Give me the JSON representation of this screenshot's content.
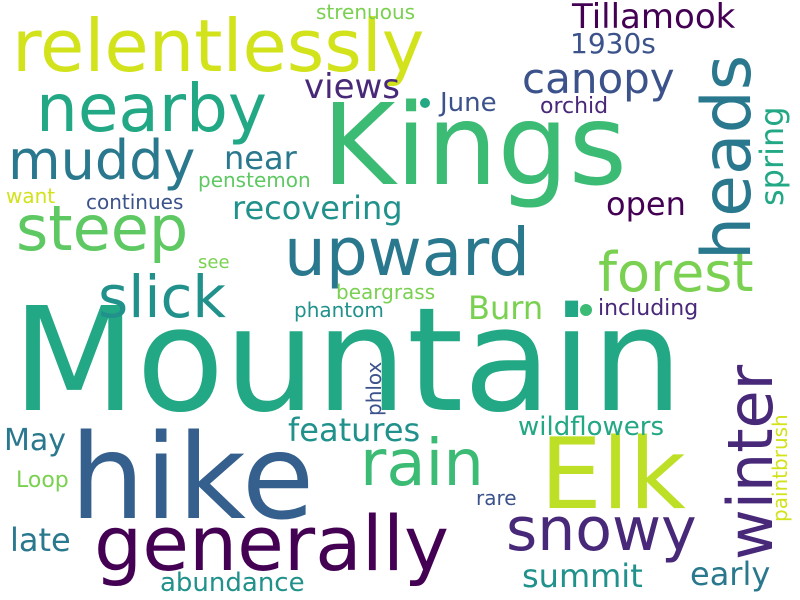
{
  "words": {
    "mountain": "Mountain",
    "kings": "Kings",
    "hike": "hike",
    "elk": "Elk",
    "relentlessly": "relentlessly",
    "nearby": "nearby",
    "generally": "generally",
    "upward": "upward",
    "heads": "heads",
    "winter": "winter",
    "steep": "steep",
    "muddy": "muddy",
    "slick": "slick",
    "snowy": "snowy",
    "rain": "rain",
    "forest": "forest",
    "canopy": "canopy",
    "tillamook": "Tillamook",
    "recovering": "recovering",
    "features": "features",
    "summit": "summit",
    "wildflowers": "wildflowers",
    "spring": "spring",
    "views": "views",
    "near": "near",
    "burn": "Burn",
    "open": "open",
    "late": "late",
    "may": "May",
    "early": "early",
    "abundance": "abundance",
    "june": "June",
    "y1930s": "1930s",
    "including": "including",
    "orchid": "orchid",
    "phantom": "phantom",
    "beargrass": "beargrass",
    "penstemon": "penstemon",
    "continues": "continues",
    "want": "want",
    "see": "see",
    "strenuous": "strenuous",
    "phlox": "phlox",
    "paintbrush": "paintbrush",
    "rare": "rare",
    "loop": "Loop"
  },
  "colors": {
    "background": "#ffffff",
    "palette": [
      "#440154",
      "#3b528b",
      "#21918c",
      "#5ec962",
      "#fde725",
      "#2a788e",
      "#22a884",
      "#bddf26",
      "#482878",
      "#7ad151"
    ]
  }
}
